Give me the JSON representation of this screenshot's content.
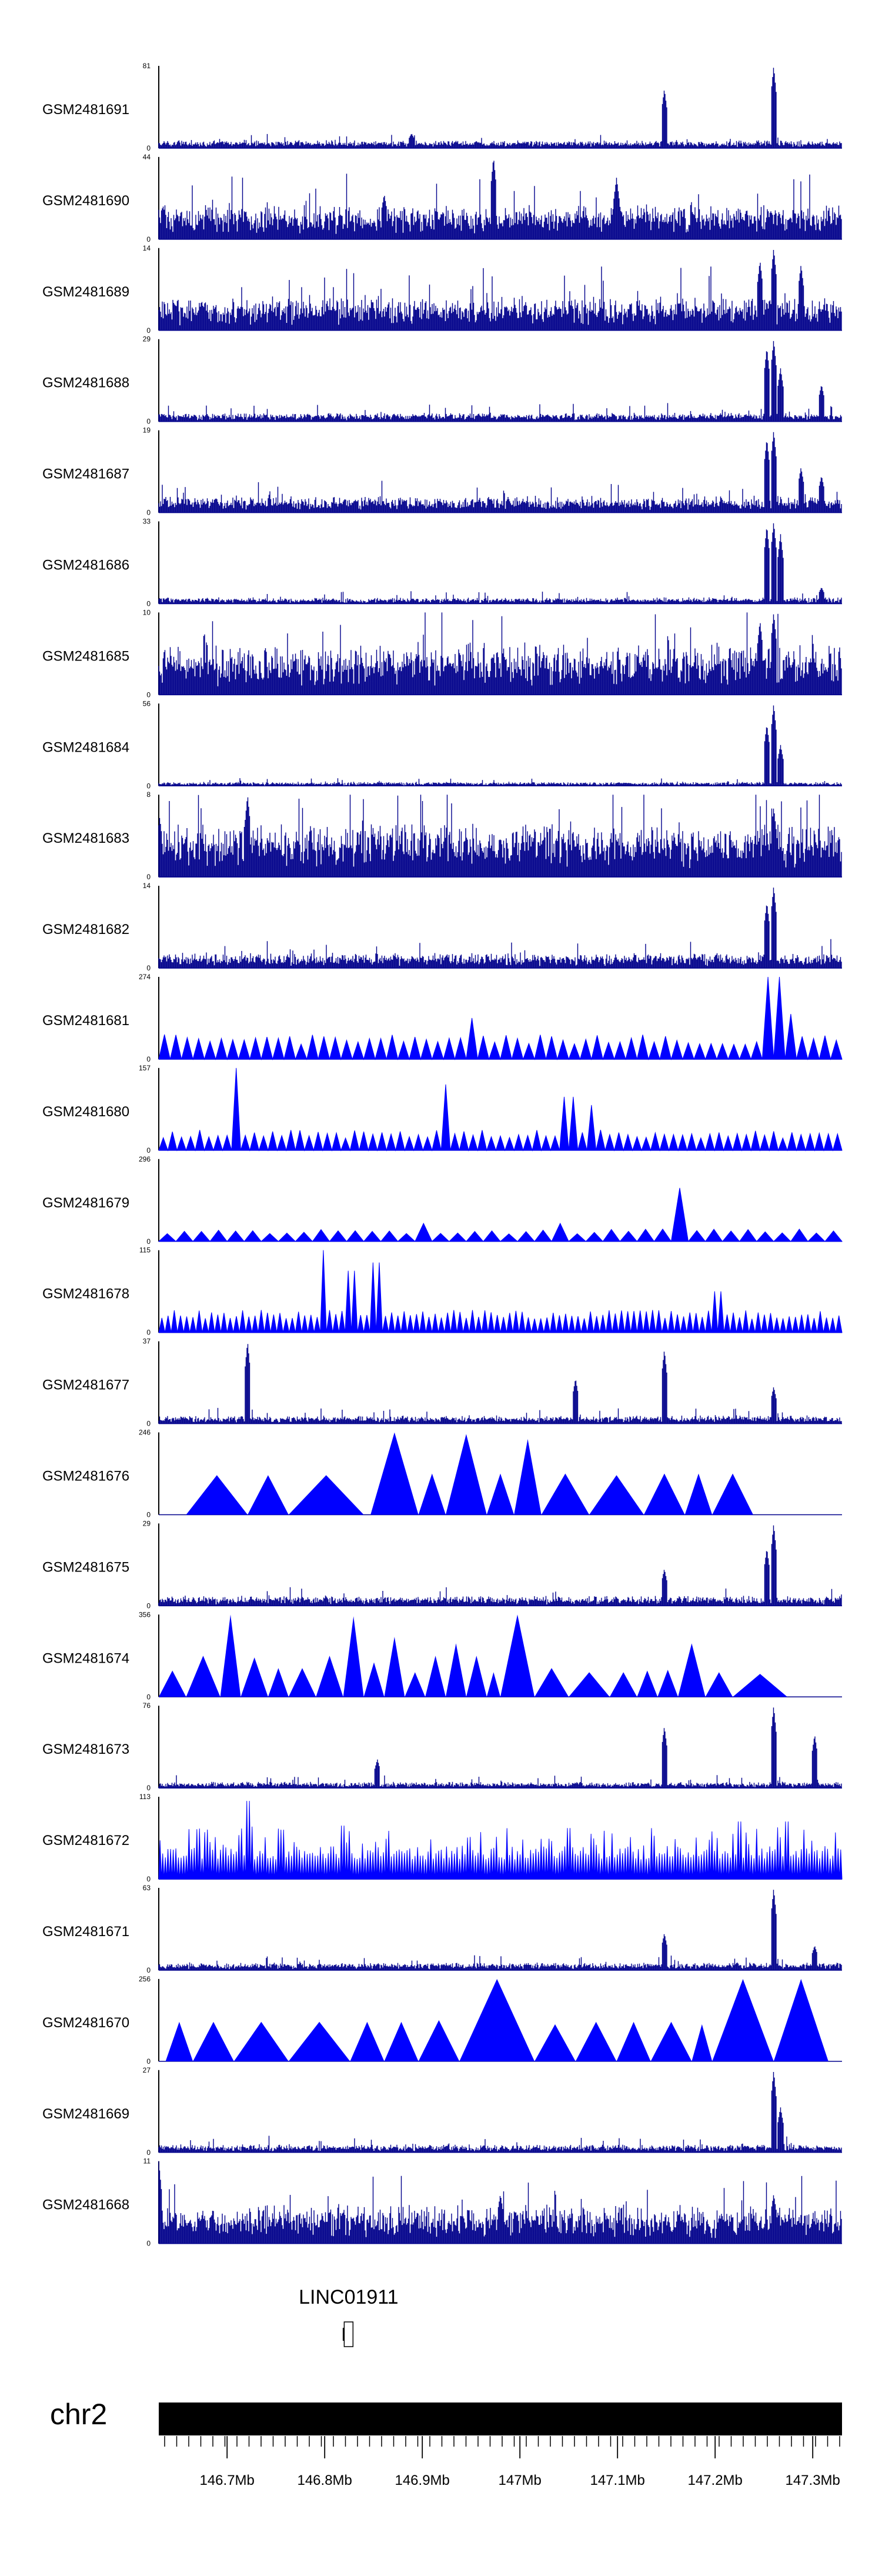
{
  "colors": {
    "track_fill": "#0000ff",
    "track_dense": "#00008b",
    "axis": "#000000",
    "chrom_bar": "#000000"
  },
  "chart_data": {
    "type": "area",
    "title": "",
    "chromosome": "chr2",
    "xlim_mb": [
      146.63,
      147.33
    ],
    "x_ticks": [
      {
        "value": 146.7,
        "label": "146.7Mb"
      },
      {
        "value": 146.8,
        "label": "146.8Mb"
      },
      {
        "value": 146.9,
        "label": "146.9Mb"
      },
      {
        "value": 147.0,
        "label": "147Mb"
      },
      {
        "value": 147.1,
        "label": "147.1Mb"
      },
      {
        "value": 147.2,
        "label": "147.2Mb"
      },
      {
        "value": 147.3,
        "label": "147.3Mb"
      }
    ],
    "gene": {
      "name": "LINC01911",
      "start_mb": 146.82,
      "end_mb": 146.829
    },
    "tracks": [
      {
        "name": "GSM2481691",
        "ymax": 81,
        "ymin": 0,
        "style": "dense",
        "base": 0.05,
        "noise": 0.07,
        "peaks": [
          [
            0.74,
            0.72
          ],
          [
            0.9,
            1.0
          ],
          [
            0.37,
            0.18
          ]
        ]
      },
      {
        "name": "GSM2481690",
        "ymax": 44,
        "ymin": 0,
        "style": "dense",
        "base": 0.2,
        "noise": 0.35,
        "peaks": [
          [
            0.49,
            1.0
          ],
          [
            0.33,
            0.55
          ],
          [
            0.67,
            0.75
          ]
        ]
      },
      {
        "name": "GSM2481689",
        "ymax": 14,
        "ymin": 0,
        "style": "dense",
        "base": 0.18,
        "noise": 0.38,
        "peaks": [
          [
            0.9,
            1.0
          ],
          [
            0.88,
            0.85
          ],
          [
            0.94,
            0.8
          ]
        ]
      },
      {
        "name": "GSM2481688",
        "ymax": 29,
        "ymin": 0,
        "style": "dense",
        "base": 0.04,
        "noise": 0.12,
        "peaks": [
          [
            0.9,
            1.0
          ],
          [
            0.89,
            0.9
          ],
          [
            0.91,
            0.65
          ],
          [
            0.97,
            0.45
          ]
        ]
      },
      {
        "name": "GSM2481687",
        "ymax": 19,
        "ymin": 0,
        "style": "dense",
        "base": 0.09,
        "noise": 0.18,
        "peaks": [
          [
            0.9,
            1.0
          ],
          [
            0.89,
            0.9
          ],
          [
            0.94,
            0.55
          ],
          [
            0.97,
            0.45
          ]
        ]
      },
      {
        "name": "GSM2481686",
        "ymax": 33,
        "ymin": 0,
        "style": "dense",
        "base": 0.03,
        "noise": 0.08,
        "peaks": [
          [
            0.9,
            1.0
          ],
          [
            0.89,
            0.95
          ],
          [
            0.91,
            0.85
          ],
          [
            0.97,
            0.2
          ]
        ]
      },
      {
        "name": "GSM2481685",
        "ymax": 10,
        "ymin": 0,
        "style": "dense",
        "base": 0.3,
        "noise": 0.5,
        "peaks": [
          [
            0.9,
            1.0
          ],
          [
            0.88,
            0.9
          ]
        ]
      },
      {
        "name": "GSM2481684",
        "ymax": 56,
        "ymin": 0,
        "style": "dense",
        "base": 0.02,
        "noise": 0.05,
        "peaks": [
          [
            0.9,
            1.0
          ],
          [
            0.89,
            0.75
          ],
          [
            0.91,
            0.5
          ]
        ]
      },
      {
        "name": "GSM2481683",
        "ymax": 8,
        "ymin": 0,
        "style": "dense",
        "base": 0.32,
        "noise": 0.55,
        "peaks": [
          [
            0.13,
            1.0
          ],
          [
            0.9,
            0.85
          ]
        ]
      },
      {
        "name": "GSM2481682",
        "ymax": 14,
        "ymin": 0,
        "style": "dense",
        "base": 0.08,
        "noise": 0.17,
        "peaks": [
          [
            0.9,
            1.0
          ],
          [
            0.89,
            0.8
          ]
        ]
      },
      {
        "name": "GSM2481681",
        "ymax": 274,
        "ymin": 0,
        "style": "tri",
        "n": 60,
        "baseh": 0.24,
        "peaks": [
          [
            0.9,
            1.0
          ],
          [
            0.92,
            0.55
          ],
          [
            0.46,
            0.5
          ]
        ]
      },
      {
        "name": "GSM2481680",
        "ymax": 157,
        "ymin": 0,
        "style": "tri",
        "n": 75,
        "baseh": 0.2,
        "peaks": [
          [
            0.11,
            1.0
          ],
          [
            0.42,
            0.8
          ],
          [
            0.63,
            0.55
          ],
          [
            0.6,
            0.65
          ]
        ]
      },
      {
        "name": "GSM2481679",
        "ymax": 296,
        "ymin": 0,
        "style": "tri",
        "n": 40,
        "baseh": 0.12,
        "peaks": [
          [
            0.77,
            0.65
          ],
          [
            0.39,
            0.22
          ],
          [
            0.58,
            0.22
          ]
        ]
      },
      {
        "name": "GSM2481678",
        "ymax": 115,
        "ymin": 0,
        "style": "tri",
        "n": 110,
        "baseh": 0.22,
        "peaks": [
          [
            0.24,
            1.0
          ],
          [
            0.32,
            0.85
          ],
          [
            0.28,
            0.75
          ],
          [
            0.82,
            0.5
          ]
        ]
      },
      {
        "name": "GSM2481677",
        "ymax": 37,
        "ymin": 0,
        "style": "dense",
        "base": 0.04,
        "noise": 0.1,
        "peaks": [
          [
            0.13,
            1.0
          ],
          [
            0.74,
            0.9
          ],
          [
            0.61,
            0.55
          ],
          [
            0.9,
            0.45
          ]
        ]
      },
      {
        "name": "GSM2481676",
        "ymax": 246,
        "ymin": 0,
        "style": "bigtri",
        "tris": [
          [
            0.04,
            0.13,
            0.48
          ],
          [
            0.13,
            0.19,
            0.48
          ],
          [
            0.19,
            0.3,
            0.48
          ],
          [
            0.31,
            0.38,
            1.0
          ],
          [
            0.38,
            0.42,
            0.5
          ],
          [
            0.42,
            0.48,
            0.98
          ],
          [
            0.48,
            0.52,
            0.5
          ],
          [
            0.52,
            0.56,
            0.92
          ],
          [
            0.56,
            0.63,
            0.5
          ],
          [
            0.63,
            0.71,
            0.48
          ],
          [
            0.71,
            0.77,
            0.5
          ],
          [
            0.77,
            0.81,
            0.5
          ],
          [
            0.81,
            0.87,
            0.5
          ]
        ]
      },
      {
        "name": "GSM2481675",
        "ymax": 29,
        "ymin": 0,
        "style": "dense",
        "base": 0.05,
        "noise": 0.12,
        "peaks": [
          [
            0.9,
            1.0
          ],
          [
            0.89,
            0.7
          ],
          [
            0.74,
            0.45
          ]
        ]
      },
      {
        "name": "GSM2481674",
        "ymax": 356,
        "ymin": 0,
        "style": "bigtri",
        "tris": [
          [
            0.0,
            0.04,
            0.32
          ],
          [
            0.04,
            0.09,
            0.5
          ],
          [
            0.09,
            0.12,
            1.0
          ],
          [
            0.12,
            0.16,
            0.48
          ],
          [
            0.16,
            0.19,
            0.35
          ],
          [
            0.19,
            0.23,
            0.35
          ],
          [
            0.23,
            0.27,
            0.5
          ],
          [
            0.27,
            0.3,
            0.98
          ],
          [
            0.3,
            0.33,
            0.42
          ],
          [
            0.33,
            0.36,
            0.73
          ],
          [
            0.36,
            0.39,
            0.3
          ],
          [
            0.39,
            0.42,
            0.5
          ],
          [
            0.42,
            0.45,
            0.65
          ],
          [
            0.45,
            0.48,
            0.5
          ],
          [
            0.48,
            0.5,
            0.3
          ],
          [
            0.5,
            0.55,
            1.0
          ],
          [
            0.55,
            0.6,
            0.35
          ],
          [
            0.6,
            0.66,
            0.3
          ],
          [
            0.66,
            0.7,
            0.3
          ],
          [
            0.7,
            0.73,
            0.32
          ],
          [
            0.73,
            0.76,
            0.33
          ],
          [
            0.76,
            0.8,
            0.65
          ],
          [
            0.8,
            0.84,
            0.3
          ],
          [
            0.84,
            0.92,
            0.28
          ]
        ]
      },
      {
        "name": "GSM2481673",
        "ymax": 76,
        "ymin": 0,
        "style": "dense",
        "base": 0.03,
        "noise": 0.08,
        "peaks": [
          [
            0.9,
            1.0
          ],
          [
            0.74,
            0.75
          ],
          [
            0.96,
            0.65
          ],
          [
            0.32,
            0.35
          ]
        ]
      },
      {
        "name": "GSM2481672",
        "ymax": 113,
        "ymin": 0,
        "style": "spiky",
        "n": 260,
        "baseh": 0.32,
        "peaks": [
          [
            0.13,
            0.95
          ],
          [
            0.18,
            0.6
          ],
          [
            0.27,
            0.65
          ],
          [
            0.6,
            0.62
          ],
          [
            0.85,
            0.7
          ],
          [
            0.92,
            0.7
          ]
        ]
      },
      {
        "name": "GSM2481671",
        "ymax": 63,
        "ymin": 0,
        "style": "dense",
        "base": 0.04,
        "noise": 0.09,
        "peaks": [
          [
            0.9,
            1.0
          ],
          [
            0.74,
            0.45
          ],
          [
            0.96,
            0.3
          ]
        ]
      },
      {
        "name": "GSM2481670",
        "ymax": 256,
        "ymin": 0,
        "style": "bigtri",
        "tris": [
          [
            0.01,
            0.05,
            0.48
          ],
          [
            0.05,
            0.11,
            0.48
          ],
          [
            0.11,
            0.19,
            0.48
          ],
          [
            0.19,
            0.28,
            0.48
          ],
          [
            0.28,
            0.33,
            0.48
          ],
          [
            0.33,
            0.38,
            0.48
          ],
          [
            0.38,
            0.44,
            0.5
          ],
          [
            0.44,
            0.55,
            1.0
          ],
          [
            0.55,
            0.61,
            0.45
          ],
          [
            0.61,
            0.67,
            0.48
          ],
          [
            0.67,
            0.72,
            0.48
          ],
          [
            0.72,
            0.78,
            0.48
          ],
          [
            0.78,
            0.81,
            0.45
          ],
          [
            0.81,
            0.9,
            1.0
          ],
          [
            0.9,
            0.98,
            1.0
          ]
        ]
      },
      {
        "name": "GSM2481669",
        "ymax": 27,
        "ymin": 0,
        "style": "dense",
        "base": 0.04,
        "noise": 0.1,
        "peaks": [
          [
            0.9,
            1.0
          ],
          [
            0.91,
            0.55
          ]
        ]
      },
      {
        "name": "GSM2481668",
        "ymax": 11,
        "ymin": 0,
        "style": "dense",
        "base": 0.22,
        "noise": 0.4,
        "peaks": [
          [
            0.0,
            1.0
          ],
          [
            0.5,
            0.6
          ],
          [
            0.9,
            0.6
          ]
        ]
      }
    ]
  }
}
